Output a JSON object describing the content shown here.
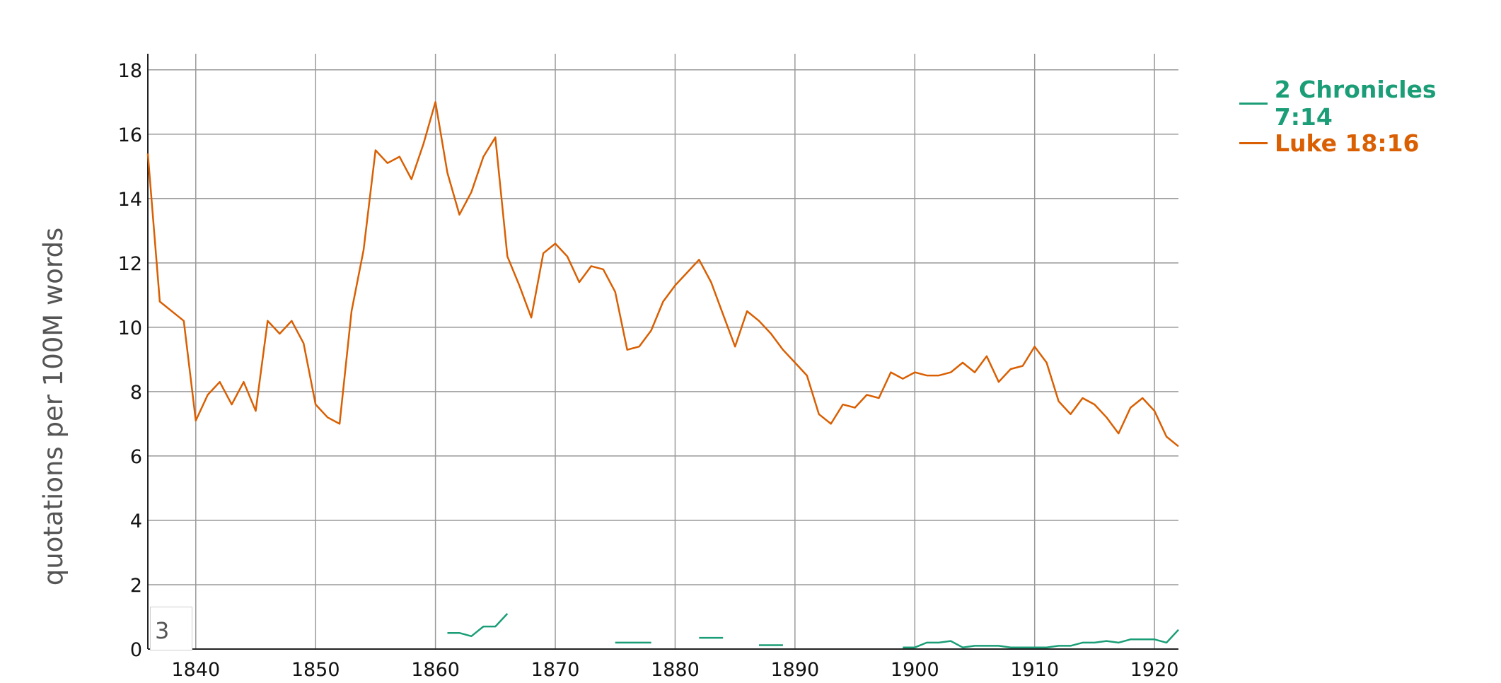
{
  "chart_data": {
    "type": "line",
    "xlabel": "",
    "ylabel": "quotations per 100M words",
    "xlim": [
      1836,
      1922
    ],
    "ylim": [
      0,
      18.5
    ],
    "x_ticks": [
      1840,
      1850,
      1860,
      1870,
      1880,
      1890,
      1900,
      1910,
      1920
    ],
    "y_ticks": [
      0,
      2,
      4,
      6,
      8,
      10,
      12,
      14,
      16,
      18
    ],
    "grid": true,
    "legend_position": "top-right",
    "smoothing_value": "3",
    "series": [
      {
        "name": "2 Chronicles 7:14",
        "color": "#1b9e77",
        "segments": [
          [
            [
              1861,
              0.5
            ],
            [
              1862,
              0.5
            ],
            [
              1863,
              0.4
            ],
            [
              1864,
              0.7
            ],
            [
              1865,
              0.7
            ],
            [
              1866,
              1.1
            ]
          ],
          [
            [
              1875,
              0.2
            ],
            [
              1878,
              0.2
            ]
          ],
          [
            [
              1882,
              0.35
            ],
            [
              1884,
              0.35
            ]
          ],
          [
            [
              1887,
              0.12
            ],
            [
              1889,
              0.12
            ]
          ],
          [
            [
              1899,
              0.05
            ],
            [
              1900,
              0.05
            ],
            [
              1901,
              0.2
            ],
            [
              1902,
              0.2
            ],
            [
              1903,
              0.25
            ],
            [
              1904,
              0.05
            ],
            [
              1905,
              0.1
            ],
            [
              1907,
              0.1
            ],
            [
              1908,
              0.05
            ],
            [
              1911,
              0.05
            ],
            [
              1912,
              0.1
            ],
            [
              1913,
              0.1
            ],
            [
              1914,
              0.2
            ],
            [
              1915,
              0.2
            ],
            [
              1916,
              0.25
            ],
            [
              1917,
              0.2
            ],
            [
              1918,
              0.3
            ],
            [
              1920,
              0.3
            ],
            [
              1921,
              0.2
            ],
            [
              1922,
              0.6
            ]
          ]
        ]
      },
      {
        "name": "Luke 18:16",
        "color": "#d95f02",
        "segments": [
          [
            [
              1836,
              15.4
            ],
            [
              1837,
              10.8
            ],
            [
              1839,
              10.2
            ],
            [
              1840,
              7.1
            ],
            [
              1841,
              7.9
            ],
            [
              1842,
              8.3
            ],
            [
              1843,
              7.6
            ],
            [
              1844,
              8.3
            ],
            [
              1845,
              7.4
            ],
            [
              1846,
              10.2
            ],
            [
              1847,
              9.8
            ],
            [
              1848,
              10.2
            ],
            [
              1849,
              9.5
            ],
            [
              1850,
              7.6
            ],
            [
              1851,
              7.2
            ],
            [
              1852,
              7.0
            ],
            [
              1853,
              10.5
            ],
            [
              1854,
              12.4
            ],
            [
              1855,
              15.5
            ],
            [
              1856,
              15.1
            ],
            [
              1857,
              15.3
            ],
            [
              1858,
              14.6
            ],
            [
              1859,
              15.7
            ],
            [
              1860,
              17.0
            ],
            [
              1861,
              14.8
            ],
            [
              1862,
              13.5
            ],
            [
              1863,
              14.2
            ],
            [
              1864,
              15.3
            ],
            [
              1865,
              15.9
            ],
            [
              1866,
              12.2
            ],
            [
              1867,
              11.3
            ],
            [
              1868,
              10.3
            ],
            [
              1869,
              12.3
            ],
            [
              1870,
              12.6
            ],
            [
              1871,
              12.2
            ],
            [
              1872,
              11.4
            ],
            [
              1873,
              11.9
            ],
            [
              1874,
              11.8
            ],
            [
              1875,
              11.1
            ],
            [
              1876,
              9.3
            ],
            [
              1877,
              9.4
            ],
            [
              1878,
              9.9
            ],
            [
              1879,
              10.8
            ],
            [
              1880,
              11.3
            ],
            [
              1881,
              11.7
            ],
            [
              1882,
              12.1
            ],
            [
              1883,
              11.4
            ],
            [
              1884,
              10.4
            ],
            [
              1885,
              9.4
            ],
            [
              1886,
              10.5
            ],
            [
              1887,
              10.2
            ],
            [
              1888,
              9.8
            ],
            [
              1889,
              9.3
            ],
            [
              1890,
              8.9
            ],
            [
              1891,
              8.5
            ],
            [
              1892,
              7.3
            ],
            [
              1893,
              7.0
            ],
            [
              1894,
              7.6
            ],
            [
              1895,
              7.5
            ],
            [
              1896,
              7.9
            ],
            [
              1897,
              7.8
            ],
            [
              1898,
              8.6
            ],
            [
              1899,
              8.4
            ],
            [
              1900,
              8.6
            ],
            [
              1901,
              8.5
            ],
            [
              1902,
              8.5
            ],
            [
              1903,
              8.6
            ],
            [
              1904,
              8.9
            ],
            [
              1905,
              8.6
            ],
            [
              1906,
              9.1
            ],
            [
              1907,
              8.3
            ],
            [
              1908,
              8.7
            ],
            [
              1909,
              8.8
            ],
            [
              1910,
              9.4
            ],
            [
              1911,
              8.9
            ],
            [
              1912,
              7.7
            ],
            [
              1913,
              7.3
            ],
            [
              1914,
              7.8
            ],
            [
              1915,
              7.6
            ],
            [
              1916,
              7.2
            ],
            [
              1917,
              6.7
            ],
            [
              1918,
              7.5
            ],
            [
              1919,
              7.8
            ],
            [
              1920,
              7.4
            ],
            [
              1921,
              6.6
            ],
            [
              1922,
              6.3
            ]
          ]
        ]
      }
    ]
  }
}
